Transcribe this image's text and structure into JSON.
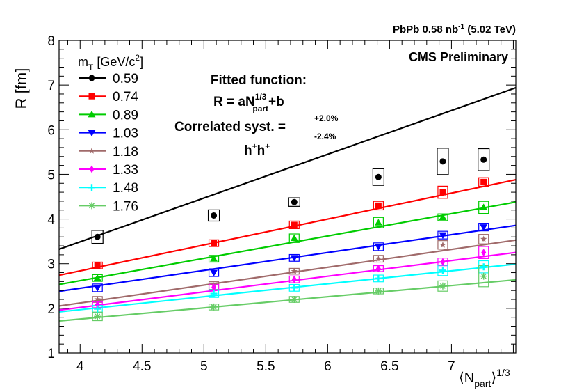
{
  "chart_data": {
    "type": "scatter",
    "title": "",
    "dataset_label": "PbPb 0.58 nb",
    "dataset_superscript": "-1",
    "dataset_energy": "(5.02 TeV)",
    "preliminary_label": "CMS Preliminary",
    "ylabel": "R [fm]",
    "xlabel_left": "⟨N",
    "xlabel_sub": "part",
    "xlabel_right": "⟩",
    "xlabel_exp": "1/3",
    "xlim": [
      3.83,
      7.52
    ],
    "ylim": [
      1,
      8
    ],
    "xticks": [
      4,
      4.5,
      5,
      5.5,
      6,
      6.5,
      7
    ],
    "xtick_labels": [
      "4",
      "4.5",
      "5",
      "5.5",
      "6",
      "6.5",
      "7"
    ],
    "yticks": [
      1,
      2,
      3,
      4,
      5,
      6,
      7,
      8
    ],
    "ytick_labels": [
      "1",
      "2",
      "3",
      "4",
      "5",
      "6",
      "7",
      "8"
    ],
    "x": [
      4.14,
      5.08,
      5.73,
      6.41,
      6.93,
      7.26
    ],
    "legend": {
      "title_main": "m",
      "title_sub": "T",
      "title_unit": " [GeV/c",
      "title_exp": "2",
      "title_end": "]"
    },
    "annotation": {
      "line1": "Fitted function:",
      "formula_main": "R = aN",
      "formula_exp": "1/3",
      "formula_sub": "part",
      "formula_end": "+b",
      "syst_label": "Correlated syst. =",
      "syst_plus": "+2.0%",
      "syst_minus": "-2.4%",
      "species_h1": "h",
      "species_sup1": "+",
      "species_h2": "h",
      "species_sup2": "+"
    },
    "series": [
      {
        "name": "0.59",
        "color": "#000000",
        "marker": "circle",
        "values": [
          3.6,
          4.08,
          4.38,
          4.94,
          5.29,
          5.33
        ],
        "syst": [
          0.13,
          0.11,
          0.08,
          0.17,
          0.28,
          0.23
        ],
        "fit": {
          "a": 0.98,
          "b": -0.43
        }
      },
      {
        "name": "0.74",
        "color": "#ff0000",
        "marker": "square",
        "values": [
          2.96,
          3.46,
          3.87,
          4.3,
          4.6,
          4.83
        ],
        "syst": [
          0.06,
          0.06,
          0.07,
          0.08,
          0.12,
          0.08
        ],
        "fit": {
          "a": 0.58,
          "b": 0.52
        }
      },
      {
        "name": "0.89",
        "color": "#00cc00",
        "marker": "triangle-up",
        "values": [
          2.68,
          3.11,
          3.57,
          3.92,
          4.04,
          4.26
        ],
        "syst": [
          0.06,
          0.06,
          0.08,
          0.1,
          0.06,
          0.12
        ],
        "fit": {
          "a": 0.5,
          "b": 0.62
        }
      },
      {
        "name": "1.03",
        "color": "#0000ff",
        "marker": "triangle-down",
        "values": [
          2.46,
          2.8,
          3.13,
          3.38,
          3.64,
          3.82
        ],
        "syst": [
          0.07,
          0.07,
          0.06,
          0.07,
          0.07,
          0.07
        ],
        "fit": {
          "a": 0.4,
          "b": 0.85
        }
      },
      {
        "name": "1.18",
        "color": "#a06a6a",
        "marker": "star",
        "values": [
          2.2,
          2.51,
          2.83,
          3.11,
          3.42,
          3.55
        ],
        "syst": [
          0.05,
          0.07,
          0.05,
          0.06,
          0.08,
          0.09
        ],
        "fit": {
          "a": 0.4,
          "b": 0.52
        }
      },
      {
        "name": "1.33",
        "color": "#ff00ff",
        "marker": "diamond",
        "values": [
          2.08,
          2.47,
          2.65,
          2.89,
          3.04,
          3.25
        ],
        "syst": [
          0.05,
          0.05,
          0.06,
          0.05,
          0.07,
          0.12
        ],
        "fit": {
          "a": 0.35,
          "b": 0.62
        }
      },
      {
        "name": "1.48",
        "color": "#00ffff",
        "marker": "cross",
        "values": [
          1.99,
          2.33,
          2.46,
          2.67,
          2.85,
          2.93
        ],
        "syst": [
          0.06,
          0.07,
          0.06,
          0.06,
          0.1,
          0.12
        ],
        "fit": {
          "a": 0.29,
          "b": 0.81
        }
      },
      {
        "name": "1.76",
        "color": "#66cc66",
        "marker": "thin-star",
        "values": [
          1.82,
          2.03,
          2.2,
          2.39,
          2.5,
          2.72
        ],
        "syst": [
          0.08,
          0.05,
          0.05,
          0.05,
          0.1,
          0.22
        ],
        "fit": {
          "a": 0.25,
          "b": 0.76
        }
      }
    ]
  }
}
